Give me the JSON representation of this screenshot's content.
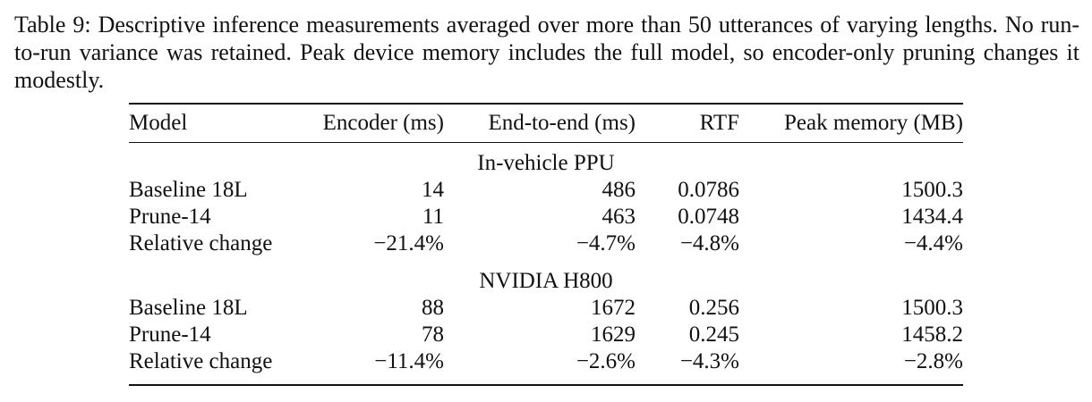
{
  "caption": {
    "label": "Table 9:",
    "text": "Descriptive inference measurements averaged over more than 50 utterances of varying lengths. No run-to-run variance was retained. Peak device memory includes the full model, so encoder-only pruning changes it modestly."
  },
  "table": {
    "headers": [
      "Model",
      "Encoder (ms)",
      "End-to-end (ms)",
      "RTF",
      "Peak memory (MB)"
    ],
    "groups": [
      {
        "name": "In-vehicle PPU",
        "rows": [
          [
            "Baseline 18L",
            "14",
            "486",
            "0.0786",
            "1500.3"
          ],
          [
            "Prune-14",
            "11",
            "463",
            "0.0748",
            "1434.4"
          ],
          [
            "Relative change",
            "−21.4%",
            "−4.7%",
            "−4.8%",
            "−4.4%"
          ]
        ]
      },
      {
        "name": "NVIDIA H800",
        "rows": [
          [
            "Baseline 18L",
            "88",
            "1672",
            "0.256",
            "1500.3"
          ],
          [
            "Prune-14",
            "78",
            "1629",
            "0.245",
            "1458.2"
          ],
          [
            "Relative change",
            "−11.4%",
            "−2.6%",
            "−4.3%",
            "−2.8%"
          ]
        ]
      }
    ]
  }
}
